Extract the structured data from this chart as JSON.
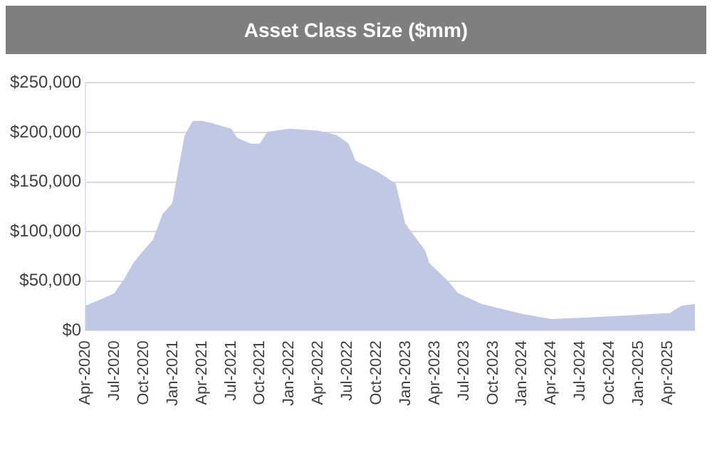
{
  "chart_data": {
    "type": "area",
    "title": "Asset Class Size ($mm)",
    "x": [
      "2020-04-01",
      "2020-05-21",
      "2020-07-01",
      "2020-08-01",
      "2020-09-01",
      "2020-10-01",
      "2020-11-01",
      "2020-12-01",
      "2021-01-01",
      "2021-01-21",
      "2021-02-09",
      "2021-03-04",
      "2021-04-01",
      "2021-05-09",
      "2021-07-01",
      "2021-07-19",
      "2021-09-01",
      "2021-10-01",
      "2021-10-25",
      "2022-01-01",
      "2022-04-01",
      "2022-05-25",
      "2022-06-09",
      "2022-07-03",
      "2022-07-25",
      "2022-10-01",
      "2022-11-28",
      "2022-12-28",
      "2023-02-28",
      "2023-03-12",
      "2023-05-12",
      "2023-06-12",
      "2023-08-28",
      "2023-11-12",
      "2024-01-03",
      "2024-04-01",
      "2024-07-25",
      "2024-10-25",
      "2025-02-09",
      "2025-04-09",
      "2025-05-15",
      "2025-06-25"
    ],
    "values": [
      24500,
      31000,
      37000,
      51000,
      68000,
      80000,
      91000,
      117000,
      128000,
      163000,
      197000,
      211000,
      211000,
      208000,
      203000,
      194000,
      188000,
      188000,
      200000,
      203000,
      201000,
      197000,
      194000,
      188000,
      171000,
      160000,
      148000,
      108000,
      80000,
      68000,
      49000,
      37000,
      26000,
      20000,
      16000,
      11000,
      12500,
      14000,
      16000,
      17000,
      24500,
      26000
    ],
    "color": "#c0c8e4",
    "xlim": [
      "2020-04-01",
      "2025-06-25"
    ],
    "xticks": [
      {
        "value": "2020-04-01",
        "label": "Apr-2020"
      },
      {
        "value": "2020-07-01",
        "label": "Jul-2020"
      },
      {
        "value": "2020-10-01",
        "label": "Oct-2020"
      },
      {
        "value": "2021-01-01",
        "label": "Jan-2021"
      },
      {
        "value": "2021-04-01",
        "label": "Apr-2021"
      },
      {
        "value": "2021-07-01",
        "label": "Jul-2021"
      },
      {
        "value": "2021-10-01",
        "label": "Oct-2021"
      },
      {
        "value": "2022-01-01",
        "label": "Jan-2022"
      },
      {
        "value": "2022-04-01",
        "label": "Apr-2022"
      },
      {
        "value": "2022-07-01",
        "label": "Jul-2022"
      },
      {
        "value": "2022-10-01",
        "label": "Oct-2022"
      },
      {
        "value": "2023-01-01",
        "label": "Jan-2023"
      },
      {
        "value": "2023-04-01",
        "label": "Apr-2023"
      },
      {
        "value": "2023-07-01",
        "label": "Jul-2023"
      },
      {
        "value": "2023-10-01",
        "label": "Oct-2023"
      },
      {
        "value": "2024-01-01",
        "label": "Jan-2024"
      },
      {
        "value": "2024-04-01",
        "label": "Apr-2024"
      },
      {
        "value": "2024-07-01",
        "label": "Jul-2024"
      },
      {
        "value": "2024-10-01",
        "label": "Oct-2024"
      },
      {
        "value": "2025-01-01",
        "label": "Jan-2025"
      },
      {
        "value": "2025-04-01",
        "label": "Apr-2025"
      }
    ],
    "ylim": [
      0,
      250000
    ],
    "yticks": [
      {
        "value": 0,
        "label": "$0"
      },
      {
        "value": 50000,
        "label": "$50,000"
      },
      {
        "value": 100000,
        "label": "$100,000"
      },
      {
        "value": 150000,
        "label": "$150,000"
      },
      {
        "value": 200000,
        "label": "$200,000"
      },
      {
        "value": 250000,
        "label": "$250,000"
      }
    ],
    "grid": "y",
    "legend": false
  }
}
